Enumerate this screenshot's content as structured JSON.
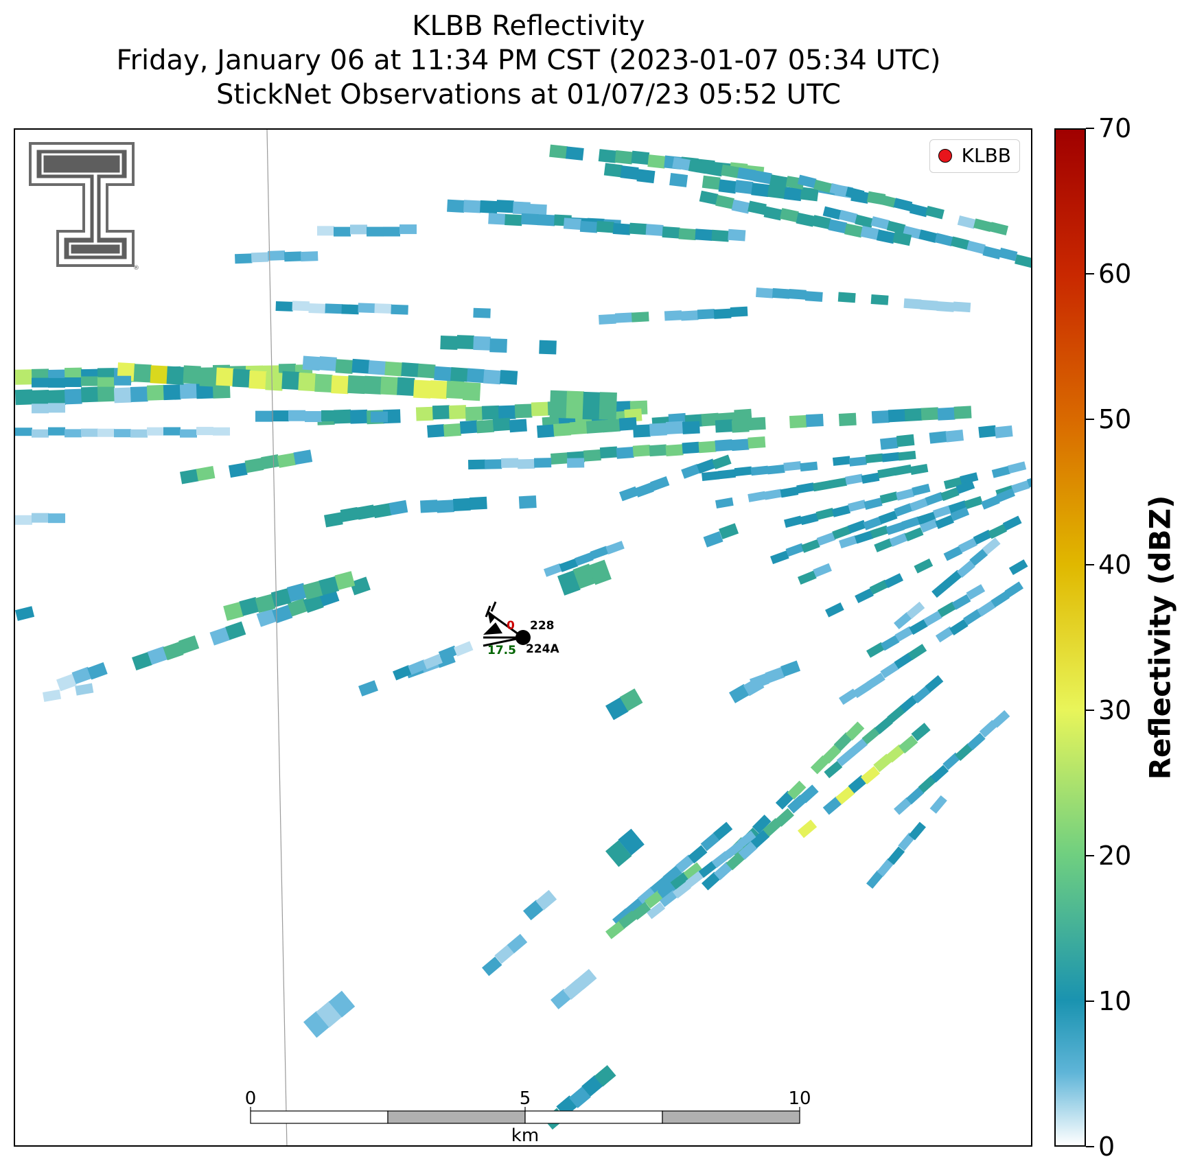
{
  "title": {
    "line1": "KLBB Reflectivity",
    "line2": "Friday, January 06 at 11:34 PM CST (2023-01-07 05:34 UTC)",
    "line3": "StickNet Observations at 01/07/23 05:52 UTC"
  },
  "legend": {
    "label": "KLBB",
    "marker_color": "#e8151b"
  },
  "colorbar": {
    "label": "Reflectivity (dBZ)",
    "min": 0,
    "max": 70,
    "ticks": [
      "0",
      "10",
      "20",
      "30",
      "40",
      "50",
      "60",
      "70"
    ],
    "stops": [
      {
        "v": 0,
        "c": "#ffffff"
      },
      {
        "v": 5,
        "c": "#5fb5d8"
      },
      {
        "v": 10,
        "c": "#1a93b0"
      },
      {
        "v": 20,
        "c": "#6fcf80"
      },
      {
        "v": 30,
        "c": "#e8f55a"
      },
      {
        "v": 40,
        "c": "#e0b800"
      },
      {
        "v": 50,
        "c": "#d96a00"
      },
      {
        "v": 60,
        "c": "#c92800"
      },
      {
        "v": 70,
        "c": "#a00000"
      }
    ]
  },
  "stations": [
    {
      "id": "228",
      "value": "0",
      "value_color": "#cc0000"
    },
    {
      "id": "224A",
      "value": "17.5",
      "value_color": "#006400"
    }
  ],
  "scale_bar": {
    "labels": [
      "0",
      "5",
      "10"
    ],
    "unit": "km"
  },
  "logo": {
    "icon": "texas-tech-double-t-logo",
    "mark": "®"
  }
}
